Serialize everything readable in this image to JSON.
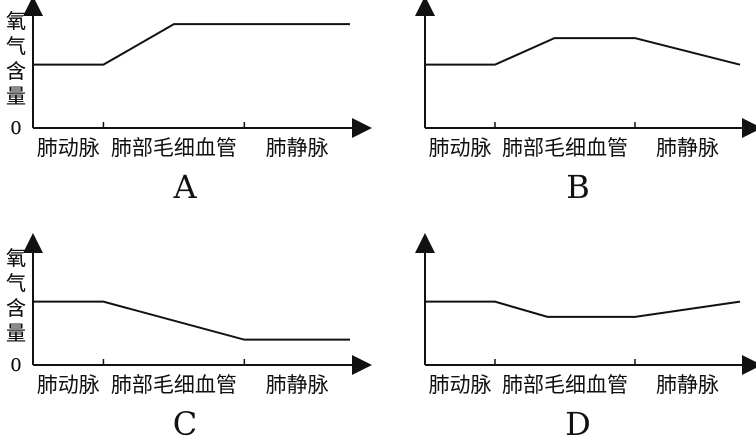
{
  "chart_data": [
    {
      "type": "line",
      "panel_label": "A",
      "ylabel": "氧气含量",
      "y_zero_label": "0",
      "categories": [
        "肺动脉",
        "肺部毛细血管",
        "肺静脉"
      ],
      "x": [
        0,
        1,
        2,
        3,
        4.5
      ],
      "values": [
        5,
        5,
        8.2,
        8.2,
        8.2
      ],
      "ylim": [
        0,
        9
      ]
    },
    {
      "type": "line",
      "panel_label": "B",
      "ylabel": "氧气含量",
      "y_zero_label": "0",
      "categories": [
        "肺动脉",
        "肺部毛细血管",
        "肺静脉"
      ],
      "x": [
        0,
        1,
        1.85,
        3,
        4.5
      ],
      "values": [
        5,
        5,
        7.1,
        7.1,
        5
      ],
      "ylim": [
        0,
        9
      ]
    },
    {
      "type": "line",
      "panel_label": "C",
      "ylabel": "氧气含量",
      "y_zero_label": "0",
      "categories": [
        "肺动脉",
        "肺部毛细血管",
        "肺静脉"
      ],
      "x": [
        0,
        1,
        3,
        4.5
      ],
      "values": [
        5,
        5,
        2,
        2
      ],
      "ylim": [
        0,
        9
      ]
    },
    {
      "type": "line",
      "panel_label": "D",
      "ylabel": "氧气含量",
      "y_zero_label": "0",
      "categories": [
        "肺动脉",
        "肺部毛细血管",
        "肺静脉"
      ],
      "x": [
        0,
        1,
        1.75,
        3,
        4.5
      ],
      "values": [
        5,
        5,
        3.8,
        3.8,
        5
      ],
      "ylim": [
        0,
        9
      ]
    }
  ]
}
